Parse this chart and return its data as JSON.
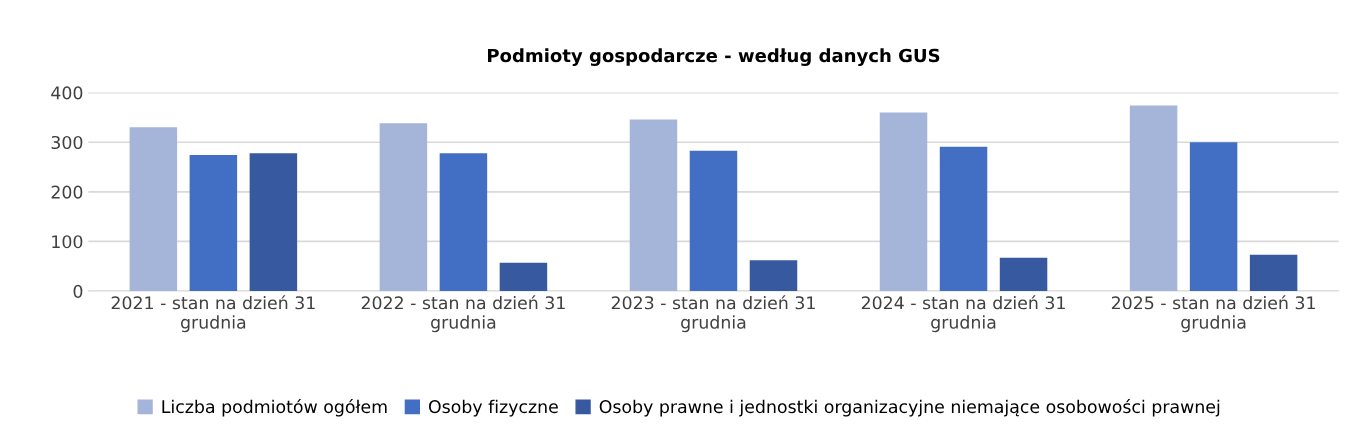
{
  "chart_data": {
    "type": "bar",
    "title": "Podmioty gospodarcze - według danych GUS",
    "categories": [
      "2021 - stan na dzień 31 grudnia",
      "2022 - stan na dzień 31 grudnia",
      "2023 - stan na dzień 31 grudnia",
      "2024 - stan na dzień 31 grudnia",
      "2025 - stan na dzień 31 grudnia"
    ],
    "series": [
      {
        "name": "Liczba podmiotów ogółem",
        "color": "#a5b4d9",
        "values": [
          330,
          338,
          346,
          360,
          374
        ]
      },
      {
        "name": "Osoby fizyczne",
        "color": "#426fc4",
        "values": [
          274,
          278,
          283,
          291,
          300
        ]
      },
      {
        "name": "Osoby prawne i jednostki organizacyjne niemające osobowości prawnej",
        "color": "#3759a0",
        "values": [
          278,
          57,
          62,
          67,
          73
        ]
      }
    ],
    "ylim": [
      0,
      400
    ],
    "yticks": [
      0,
      100,
      200,
      300,
      400
    ],
    "grid": "y",
    "legend": "bottom"
  }
}
